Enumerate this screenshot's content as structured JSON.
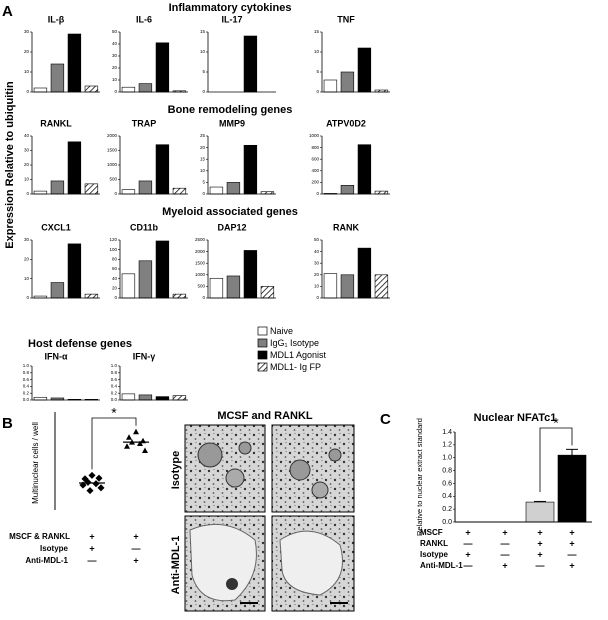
{
  "figure": {
    "panel_labels": [
      "A",
      "B",
      "C"
    ],
    "y_label": "Expression Relative to ubiquitin",
    "sections": [
      "Inflammatory cytokines",
      "Bone remodeling genes",
      "Myeloid associated genes",
      "Host defense genes"
    ],
    "legend": [
      {
        "name": "Naive",
        "color": "#ffffff"
      },
      {
        "name": "IgG₁ Isotype",
        "color": "#808080"
      },
      {
        "name": "MDL1 Agonist",
        "color": "#000000"
      },
      {
        "name": "MDL1- Ig FP",
        "color": "hatched"
      }
    ],
    "micrographs": {
      "title": "MCSF and RANKL",
      "rows": [
        "Isotype",
        "Anti-MDL-1"
      ]
    }
  },
  "chart_data": [
    {
      "type": "bar",
      "title": "IL-β",
      "values": [
        2,
        14,
        29,
        3
      ],
      "ylim": [
        0,
        30
      ],
      "yticks": [
        0,
        10,
        20,
        30
      ]
    },
    {
      "type": "bar",
      "title": "IL-6",
      "values": [
        4,
        7,
        41,
        1
      ],
      "ylim": [
        0,
        50
      ],
      "yticks": [
        0,
        10,
        20,
        30,
        40,
        50
      ]
    },
    {
      "type": "bar",
      "title": "IL-17",
      "values": [
        0,
        0,
        14,
        0
      ],
      "ylim": [
        0,
        15
      ],
      "yticks": [
        0,
        5,
        10,
        15
      ]
    },
    {
      "type": "bar",
      "title": "TNF",
      "values": [
        3,
        5,
        11,
        0.5
      ],
      "ylim": [
        0,
        15
      ],
      "yticks": [
        0,
        5,
        10,
        15
      ]
    },
    {
      "type": "bar",
      "title": "RANKL",
      "values": [
        2,
        9,
        36,
        7
      ],
      "ylim": [
        0,
        40
      ],
      "yticks": [
        0,
        10,
        20,
        30,
        40
      ]
    },
    {
      "type": "bar",
      "title": "TRAP",
      "values": [
        150,
        450,
        1700,
        200
      ],
      "ylim": [
        0,
        2000
      ],
      "yticks": [
        0,
        500,
        1000,
        1500,
        2000
      ]
    },
    {
      "type": "bar",
      "title": "MMP9",
      "values": [
        3,
        5,
        21,
        1
      ],
      "ylim": [
        0,
        25
      ],
      "yticks": [
        0,
        5,
        10,
        15,
        20,
        25
      ]
    },
    {
      "type": "bar",
      "title": "ATPV0D2",
      "values": [
        10,
        150,
        850,
        50
      ],
      "ylim": [
        0,
        1000
      ],
      "yticks": [
        0,
        200,
        400,
        600,
        800,
        1000
      ]
    },
    {
      "type": "bar",
      "title": "CXCL1",
      "values": [
        1,
        8,
        28,
        2
      ],
      "ylim": [
        0,
        30
      ],
      "yticks": [
        0,
        10,
        20,
        30
      ]
    },
    {
      "type": "bar",
      "title": "CD11b",
      "values": [
        50,
        77,
        118,
        8
      ],
      "ylim": [
        0,
        120
      ],
      "yticks": [
        0,
        20,
        40,
        60,
        80,
        100,
        120
      ]
    },
    {
      "type": "bar",
      "title": "DAP12",
      "values": [
        850,
        950,
        2050,
        500
      ],
      "ylim": [
        0,
        2500
      ],
      "yticks": [
        0,
        500,
        1000,
        1500,
        2000,
        2500
      ]
    },
    {
      "type": "bar",
      "title": "RANK",
      "values": [
        21,
        20,
        43,
        20
      ],
      "ylim": [
        0,
        50
      ],
      "yticks": [
        0,
        10,
        20,
        30,
        40,
        50
      ]
    },
    {
      "type": "bar",
      "title": "IFN-α",
      "values": [
        0.08,
        0.06,
        0.02,
        0.02
      ],
      "ylim": [
        0,
        1
      ],
      "yticks": [
        {
          "value": 0,
          "label": "0.0"
        },
        0.2,
        0.4,
        0.6,
        0.8,
        {
          "value": 1,
          "label": "1.0"
        }
      ]
    },
    {
      "type": "bar",
      "title": "IFN-γ",
      "values": [
        0.18,
        0.15,
        0.1,
        0.13
      ],
      "ylim": [
        0,
        1
      ],
      "yticks": [
        {
          "value": 0,
          "label": "0.0"
        },
        0.2,
        0.4,
        0.6,
        0.8,
        {
          "value": 1,
          "label": "1.0"
        }
      ]
    },
    {
      "type": "scatter",
      "y_label": "Multinuclear cells / well",
      "ylim": [
        0,
        130
      ],
      "annotation": "*",
      "groups": [
        {
          "values": [
            50,
            45,
            46,
            40,
            38,
            36,
            32,
            28
          ],
          "mean": 39
        },
        {
          "values": [
            113,
            105,
            100,
            98,
            96,
            92,
            86
          ],
          "mean": 98
        }
      ],
      "conditions": [
        {
          "label": "MSCF & RANKL",
          "signs": [
            "+",
            "+"
          ]
        },
        {
          "label": "Isotype",
          "signs": [
            "+",
            "—"
          ]
        },
        {
          "label": "Anti-MDL-1",
          "signs": [
            "—",
            "+"
          ]
        }
      ]
    },
    {
      "type": "errorbar",
      "title": "Nuclear NFATc1",
      "y_label": "Relative to nuclear extract standard",
      "values": [
        0,
        0,
        0.31,
        1.04
      ],
      "errors": [
        null,
        null,
        0.01,
        0.09
      ],
      "colors": [
        "#ffffff",
        "#ffffff",
        "#d0d0d0",
        "#000000"
      ],
      "ylim": [
        0,
        1.4
      ],
      "yticks": [
        {
          "value": 0,
          "label": "0.0"
        },
        0.2,
        0.4,
        0.6,
        0.8,
        {
          "value": 1,
          "label": "1.0"
        },
        1.2,
        1.4
      ],
      "annotation": "*",
      "conditions": [
        {
          "label": "MSCF",
          "signs": [
            "+",
            "+",
            "+",
            "+"
          ]
        },
        {
          "label": "RANKL",
          "signs": [
            "—",
            "—",
            "+",
            "+"
          ]
        },
        {
          "label": "Isotype",
          "signs": [
            "+",
            "—",
            "+",
            "—"
          ]
        },
        {
          "label": "Anti-MDL-1",
          "signs": [
            "—",
            "+",
            "—",
            "+"
          ]
        }
      ]
    }
  ]
}
